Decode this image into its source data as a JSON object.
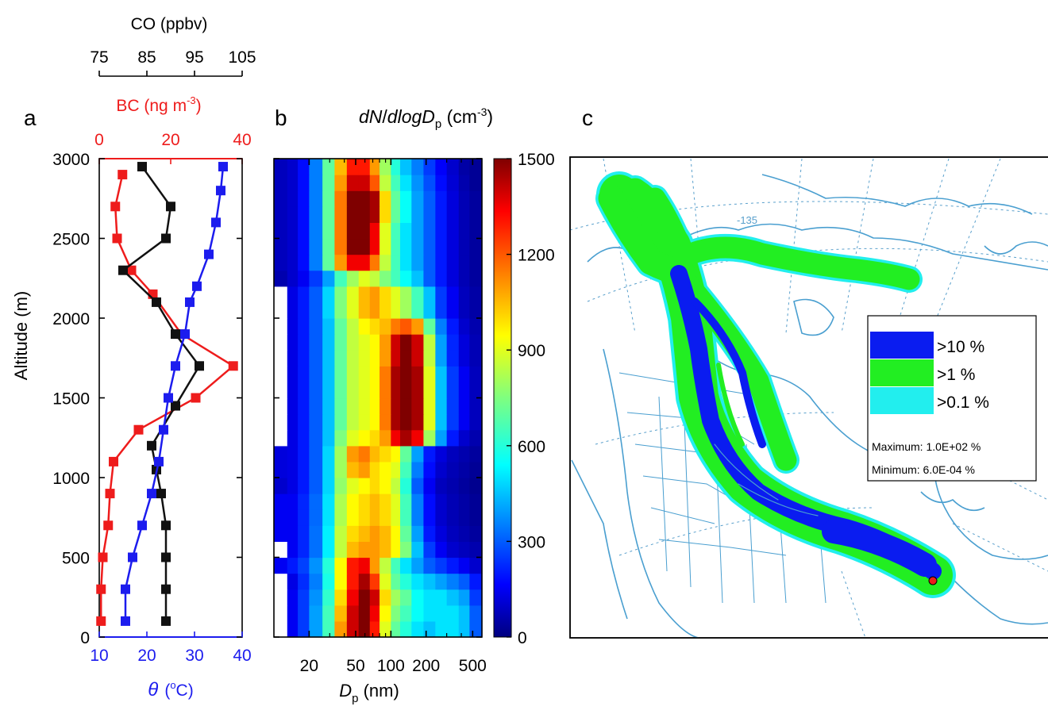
{
  "panel_a": {
    "letter": "a",
    "co_axis": {
      "label": "CO (ppbv)",
      "ticks": [
        "75",
        "85",
        "95",
        "105"
      ],
      "range": [
        75,
        105
      ]
    },
    "bc_axis": {
      "label": "BC (ng m",
      "exp": "-3",
      "close": ")",
      "ticks": [
        "0",
        "20",
        "40"
      ],
      "range": [
        0,
        40
      ],
      "color": "#ee1c1c"
    },
    "theta_axis": {
      "symbol": "θ",
      "unit": "(",
      "sup": "o",
      "unit_tail": "C)",
      "ticks": [
        "10",
        "20",
        "30",
        "40"
      ],
      "range": [
        10,
        40
      ],
      "color": "#1c1cee"
    },
    "y_axis": {
      "label": "Altitude (m)",
      "ticks": [
        "0",
        "500",
        "1000",
        "1500",
        "2000",
        "2500",
        "3000"
      ],
      "range": [
        0,
        3000
      ]
    }
  },
  "panel_b": {
    "letter": "b",
    "title_parts": [
      "dN",
      "/",
      "d",
      "logD",
      "p",
      " (cm",
      "-3",
      ")"
    ],
    "x_axis": {
      "label": "D",
      "sub": "p",
      "unit": " (nm)",
      "ticks": [
        "20",
        "50",
        "100",
        "200",
        "500"
      ],
      "range": [
        10,
        600
      ]
    },
    "colorbar": {
      "ticks": [
        "0",
        "300",
        "600",
        "900",
        "1200",
        "1500"
      ],
      "range": [
        0,
        1500
      ]
    }
  },
  "panel_c": {
    "letter": "c",
    "map_label": "-135",
    "legend": {
      "items": [
        {
          "label": ">10  %",
          "color": "#0a1cf0"
        },
        {
          "label": ">1  %",
          "color": "#22ee22"
        },
        {
          "label": ">0.1  %",
          "color": "#22eeee"
        }
      ],
      "maximum": "Maximum: 1.0E+02  %",
      "minimum": "Minimum: 6.0E-04  %"
    }
  },
  "chart_data": [
    {
      "type": "line",
      "panel": "a",
      "y_label": "Altitude (m)",
      "ylim": [
        0,
        3000
      ],
      "series": [
        {
          "axis": "BC",
          "unit": "ng m-3",
          "color": "#ee1c1c",
          "points": [
            [
              0.5,
              100
            ],
            [
              0.5,
              300
            ],
            [
              1,
              500
            ],
            [
              2.5,
              700
            ],
            [
              3,
              900
            ],
            [
              4,
              1100
            ],
            [
              11,
              1300
            ],
            [
              27,
              1500
            ],
            [
              37.5,
              1700
            ],
            [
              23,
              1900
            ],
            [
              15,
              2150
            ],
            [
              9,
              2300
            ],
            [
              5,
              2500
            ],
            [
              4.5,
              2700
            ],
            [
              6.5,
              2900
            ]
          ]
        },
        {
          "axis": "CO",
          "unit": "ppbv",
          "color": "#111111",
          "points": [
            [
              89,
              100
            ],
            [
              89,
              300
            ],
            [
              89,
              500
            ],
            [
              89,
              700
            ],
            [
              88,
              900
            ],
            [
              87,
              1050
            ],
            [
              86,
              1200
            ],
            [
              91,
              1450
            ],
            [
              96,
              1700
            ],
            [
              91,
              1900
            ],
            [
              87,
              2100
            ],
            [
              80,
              2300
            ],
            [
              89,
              2500
            ],
            [
              90,
              2700
            ],
            [
              84,
              2950
            ]
          ]
        },
        {
          "axis": "theta",
          "unit": "°C",
          "color": "#1c1cee",
          "points": [
            [
              15.5,
              100
            ],
            [
              15.5,
              300
            ],
            [
              17,
              500
            ],
            [
              19,
              700
            ],
            [
              21,
              900
            ],
            [
              22.5,
              1100
            ],
            [
              23.5,
              1300
            ],
            [
              24.5,
              1500
            ],
            [
              26,
              1700
            ],
            [
              28,
              1900
            ],
            [
              29,
              2100
            ],
            [
              30.5,
              2200
            ],
            [
              33,
              2400
            ],
            [
              34.5,
              2600
            ],
            [
              35.5,
              2800
            ],
            [
              36,
              2950
            ]
          ]
        }
      ]
    },
    {
      "type": "heatmap",
      "panel": "b",
      "x_label": "Dp (nm)",
      "x_scale": "log",
      "x_edges": [
        10,
        13,
        16,
        20,
        26,
        33,
        42,
        53,
        66,
        80,
        100,
        120,
        150,
        190,
        240,
        300,
        380,
        470,
        600
      ],
      "y_edges": [
        0,
        100,
        200,
        300,
        400,
        500,
        600,
        700,
        800,
        900,
        1000,
        1100,
        1200,
        1300,
        1400,
        1500,
        1600,
        1700,
        1800,
        1900,
        2000,
        2100,
        2200,
        2300,
        2400,
        2500,
        2600,
        2700,
        2800,
        2900,
        3000
      ],
      "colorbar_range": [
        0,
        1500
      ],
      "values": [
        [
          null,
          150,
          250,
          400,
          650,
          1100,
          1400,
          1500,
          1300,
          900,
          700,
          600,
          500,
          450,
          500,
          500,
          450,
          300
        ],
        [
          null,
          150,
          250,
          400,
          650,
          1050,
          1400,
          1500,
          1350,
          950,
          750,
          650,
          550,
          500,
          500,
          500,
          450,
          300
        ],
        [
          null,
          150,
          250,
          380,
          620,
          1000,
          1350,
          1500,
          1400,
          1000,
          800,
          700,
          550,
          500,
          500,
          450,
          400,
          250
        ],
        [
          null,
          130,
          230,
          350,
          580,
          950,
          1300,
          1450,
          1250,
          900,
          700,
          600,
          500,
          450,
          400,
          350,
          300,
          200
        ],
        [
          150,
          200,
          260,
          380,
          600,
          950,
          1300,
          1350,
          1100,
          850,
          650,
          500,
          400,
          300,
          250,
          200,
          150,
          100
        ],
        [
          null,
          150,
          220,
          330,
          520,
          850,
          1050,
          1100,
          1100,
          1050,
          950,
          750,
          450,
          250,
          150,
          100,
          80,
          60
        ],
        [
          150,
          150,
          220,
          330,
          520,
          850,
          1000,
          1050,
          1100,
          1050,
          950,
          700,
          400,
          200,
          120,
          80,
          60,
          40
        ],
        [
          150,
          150,
          220,
          320,
          500,
          820,
          950,
          1000,
          1050,
          1000,
          900,
          650,
          350,
          180,
          100,
          70,
          50,
          30
        ],
        [
          150,
          150,
          220,
          320,
          500,
          820,
          950,
          1000,
          1050,
          1000,
          900,
          650,
          350,
          180,
          100,
          70,
          50,
          30
        ],
        [
          100,
          130,
          200,
          300,
          480,
          780,
          900,
          950,
          1000,
          950,
          850,
          600,
          300,
          150,
          80,
          60,
          40,
          20
        ],
        [
          120,
          130,
          200,
          300,
          480,
          800,
          1050,
          1100,
          1000,
          950,
          900,
          650,
          350,
          180,
          100,
          70,
          50,
          30
        ],
        [
          120,
          130,
          200,
          300,
          480,
          800,
          1100,
          1150,
          1050,
          1000,
          950,
          700,
          400,
          200,
          120,
          80,
          60,
          40
        ],
        [
          null,
          130,
          200,
          300,
          450,
          750,
          900,
          950,
          1000,
          1100,
          1350,
          1450,
          1350,
          800,
          400,
          200,
          100,
          60
        ],
        [
          null,
          130,
          200,
          300,
          450,
          700,
          850,
          900,
          950,
          1150,
          1450,
          1500,
          1450,
          900,
          450,
          250,
          150,
          80
        ],
        [
          null,
          130,
          200,
          300,
          450,
          700,
          850,
          900,
          950,
          1150,
          1450,
          1500,
          1450,
          900,
          450,
          250,
          150,
          80
        ],
        [
          null,
          130,
          200,
          300,
          450,
          700,
          850,
          900,
          950,
          1150,
          1450,
          1500,
          1450,
          900,
          450,
          250,
          150,
          80
        ],
        [
          null,
          130,
          200,
          300,
          450,
          700,
          850,
          900,
          950,
          1150,
          1450,
          1500,
          1450,
          900,
          450,
          250,
          150,
          80
        ],
        [
          null,
          130,
          200,
          300,
          450,
          700,
          850,
          900,
          950,
          1100,
          1400,
          1500,
          1400,
          850,
          400,
          220,
          120,
          70
        ],
        [
          null,
          130,
          200,
          300,
          450,
          700,
          850,
          900,
          950,
          1100,
          1400,
          1500,
          1400,
          850,
          400,
          220,
          120,
          70
        ],
        [
          null,
          130,
          200,
          300,
          450,
          700,
          850,
          950,
          1000,
          1050,
          1150,
          1200,
          1100,
          700,
          350,
          200,
          100,
          60
        ],
        [
          null,
          130,
          200,
          300,
          480,
          750,
          900,
          1050,
          1100,
          1000,
          900,
          800,
          650,
          450,
          250,
          150,
          80,
          50
        ],
        [
          null,
          130,
          200,
          300,
          480,
          750,
          900,
          1050,
          1100,
          1000,
          900,
          800,
          650,
          450,
          250,
          150,
          80,
          50
        ],
        [
          60,
          100,
          150,
          250,
          400,
          650,
          800,
          900,
          850,
          750,
          650,
          550,
          450,
          300,
          200,
          120,
          70,
          40
        ],
        [
          80,
          100,
          180,
          350,
          700,
          1100,
          1350,
          1350,
          1150,
          850,
          650,
          500,
          400,
          300,
          200,
          120,
          70,
          40
        ],
        [
          80,
          100,
          180,
          350,
          700,
          1150,
          1500,
          1500,
          1350,
          900,
          650,
          500,
          400,
          300,
          200,
          120,
          70,
          40
        ],
        [
          80,
          100,
          180,
          350,
          700,
          1150,
          1500,
          1500,
          1350,
          900,
          650,
          500,
          400,
          300,
          200,
          120,
          70,
          40
        ],
        [
          80,
          100,
          180,
          350,
          700,
          1150,
          1500,
          1500,
          1450,
          1000,
          700,
          550,
          400,
          300,
          200,
          120,
          70,
          40
        ],
        [
          80,
          100,
          180,
          350,
          700,
          1150,
          1500,
          1500,
          1450,
          1000,
          700,
          550,
          400,
          300,
          200,
          120,
          70,
          40
        ],
        [
          80,
          100,
          180,
          350,
          700,
          1100,
          1400,
          1400,
          1200,
          850,
          650,
          500,
          380,
          280,
          180,
          110,
          60,
          30
        ],
        [
          80,
          100,
          180,
          350,
          700,
          1050,
          1300,
          1300,
          1100,
          800,
          600,
          450,
          350,
          250,
          160,
          100,
          50,
          30
        ]
      ]
    },
    {
      "type": "map",
      "panel": "c",
      "legend": [
        ">10  %",
        ">1  %",
        ">0.1  %"
      ],
      "maximum": "1.0E+02 %",
      "minimum": "6.0E-04 %"
    }
  ]
}
